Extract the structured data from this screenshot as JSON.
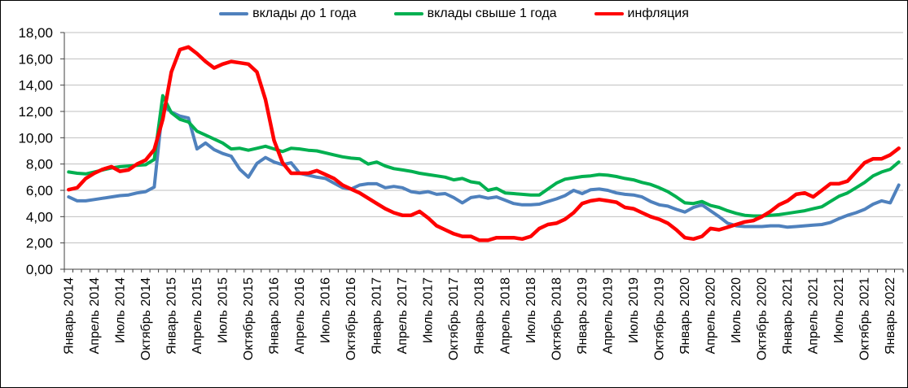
{
  "chart_data": {
    "type": "line",
    "title": "",
    "xlabel": "",
    "ylabel": "",
    "x_unit": "month",
    "x_start": "Январь 2014",
    "x_end": "Февраль 2022",
    "ylim": [
      0,
      18
    ],
    "y_step": 2,
    "grid": true,
    "legend_position": "top-center",
    "y_tick_labels": [
      "0,00",
      "2,00",
      "4,00",
      "6,00",
      "8,00",
      "10,00",
      "12,00",
      "14,00",
      "16,00",
      "18,00"
    ],
    "x_tick_labels": [
      "Январь 2014",
      "Апрель 2014",
      "Июль 2014",
      "Октябрь 2014",
      "Январь 2015",
      "Апрель 2015",
      "Июль 2015",
      "Октябрь 2015",
      "Январь 2016",
      "Апрель 2016",
      "Июль 2016",
      "Октябрь 2016",
      "Январь 2017",
      "Апрель 2017",
      "Июль 2017",
      "Октябрь 2017",
      "Январь 2018",
      "Апрель 2018",
      "Июль 2018",
      "Октябрь 2018",
      "Январь 2019",
      "Апрель 2019",
      "Июль 2019",
      "Октябрь 2019",
      "Январь 2020",
      "Апрель 2020",
      "Июль 2020",
      "Октябрь 2020",
      "Январь 2021",
      "Апрель 2021",
      "Июль 2021",
      "Октябрь 2021",
      "Январь 2022"
    ],
    "series": [
      {
        "name": "вклады до 1 года",
        "color": "#4F81BD",
        "values": [
          5.5,
          5.2,
          5.2,
          5.3,
          5.4,
          5.5,
          5.6,
          5.65,
          5.8,
          5.9,
          6.25,
          12.45,
          11.95,
          11.65,
          11.5,
          9.15,
          9.6,
          9.1,
          8.8,
          8.6,
          7.6,
          7.0,
          8.05,
          8.5,
          8.15,
          7.95,
          8.1,
          7.3,
          7.15,
          7.0,
          6.9,
          6.55,
          6.2,
          6.1,
          6.4,
          6.5,
          6.5,
          6.2,
          6.3,
          6.2,
          5.9,
          5.8,
          5.9,
          5.7,
          5.75,
          5.45,
          5.05,
          5.45,
          5.55,
          5.4,
          5.5,
          5.25,
          5.0,
          4.9,
          4.9,
          4.95,
          5.15,
          5.35,
          5.6,
          6.0,
          5.75,
          6.05,
          6.1,
          6.0,
          5.8,
          5.7,
          5.65,
          5.5,
          5.15,
          4.9,
          4.8,
          4.55,
          4.35,
          4.7,
          4.9,
          4.45,
          4.0,
          3.5,
          3.3,
          3.25,
          3.25,
          3.25,
          3.3,
          3.3,
          3.2,
          3.25,
          3.3,
          3.35,
          3.4,
          3.55,
          3.85,
          4.1,
          4.3,
          4.55,
          4.95,
          5.2,
          5.05,
          6.4
        ]
      },
      {
        "name": "вклады свыше 1 года",
        "color": "#00B050",
        "values": [
          7.4,
          7.3,
          7.25,
          7.4,
          7.55,
          7.7,
          7.8,
          7.85,
          7.9,
          7.95,
          8.35,
          13.2,
          11.9,
          11.4,
          11.2,
          10.5,
          10.2,
          9.9,
          9.6,
          9.15,
          9.2,
          9.05,
          9.2,
          9.35,
          9.15,
          8.95,
          9.2,
          9.15,
          9.05,
          9.0,
          8.85,
          8.7,
          8.55,
          8.45,
          8.4,
          8.0,
          8.15,
          7.85,
          7.65,
          7.55,
          7.45,
          7.3,
          7.2,
          7.1,
          7.0,
          6.8,
          6.9,
          6.65,
          6.55,
          6.0,
          6.15,
          5.8,
          5.75,
          5.7,
          5.65,
          5.65,
          6.1,
          6.55,
          6.85,
          6.95,
          7.05,
          7.1,
          7.2,
          7.15,
          7.05,
          6.9,
          6.8,
          6.6,
          6.45,
          6.2,
          5.9,
          5.5,
          5.05,
          5.0,
          5.15,
          4.85,
          4.7,
          4.45,
          4.25,
          4.1,
          4.05,
          4.05,
          4.1,
          4.15,
          4.25,
          4.35,
          4.45,
          4.6,
          4.75,
          5.15,
          5.55,
          5.8,
          6.2,
          6.6,
          7.1,
          7.4,
          7.6,
          8.15
        ]
      },
      {
        "name": "инфляция",
        "color": "#FF0000",
        "values": [
          6.05,
          6.2,
          6.9,
          7.3,
          7.6,
          7.8,
          7.45,
          7.55,
          8.0,
          8.3,
          9.1,
          11.4,
          15.0,
          16.7,
          16.9,
          16.4,
          15.8,
          15.3,
          15.6,
          15.8,
          15.7,
          15.6,
          15.0,
          12.9,
          9.8,
          8.1,
          7.3,
          7.3,
          7.3,
          7.5,
          7.2,
          6.9,
          6.4,
          6.1,
          5.8,
          5.4,
          5.0,
          4.6,
          4.3,
          4.1,
          4.1,
          4.4,
          3.9,
          3.3,
          3.0,
          2.7,
          2.5,
          2.5,
          2.2,
          2.2,
          2.4,
          2.4,
          2.4,
          2.3,
          2.5,
          3.1,
          3.4,
          3.5,
          3.8,
          4.3,
          5.0,
          5.2,
          5.3,
          5.2,
          5.1,
          4.7,
          4.6,
          4.3,
          4.0,
          3.8,
          3.5,
          3.0,
          2.4,
          2.3,
          2.5,
          3.1,
          3.0,
          3.2,
          3.4,
          3.6,
          3.7,
          4.0,
          4.4,
          4.9,
          5.2,
          5.7,
          5.8,
          5.5,
          6.0,
          6.5,
          6.5,
          6.7,
          7.4,
          8.1,
          8.4,
          8.4,
          8.7,
          9.2
        ]
      }
    ]
  },
  "style_colors": {
    "grid": "#BFBFBF",
    "axis": "#404040",
    "background": "#FFFFFF",
    "border": "#000000"
  }
}
